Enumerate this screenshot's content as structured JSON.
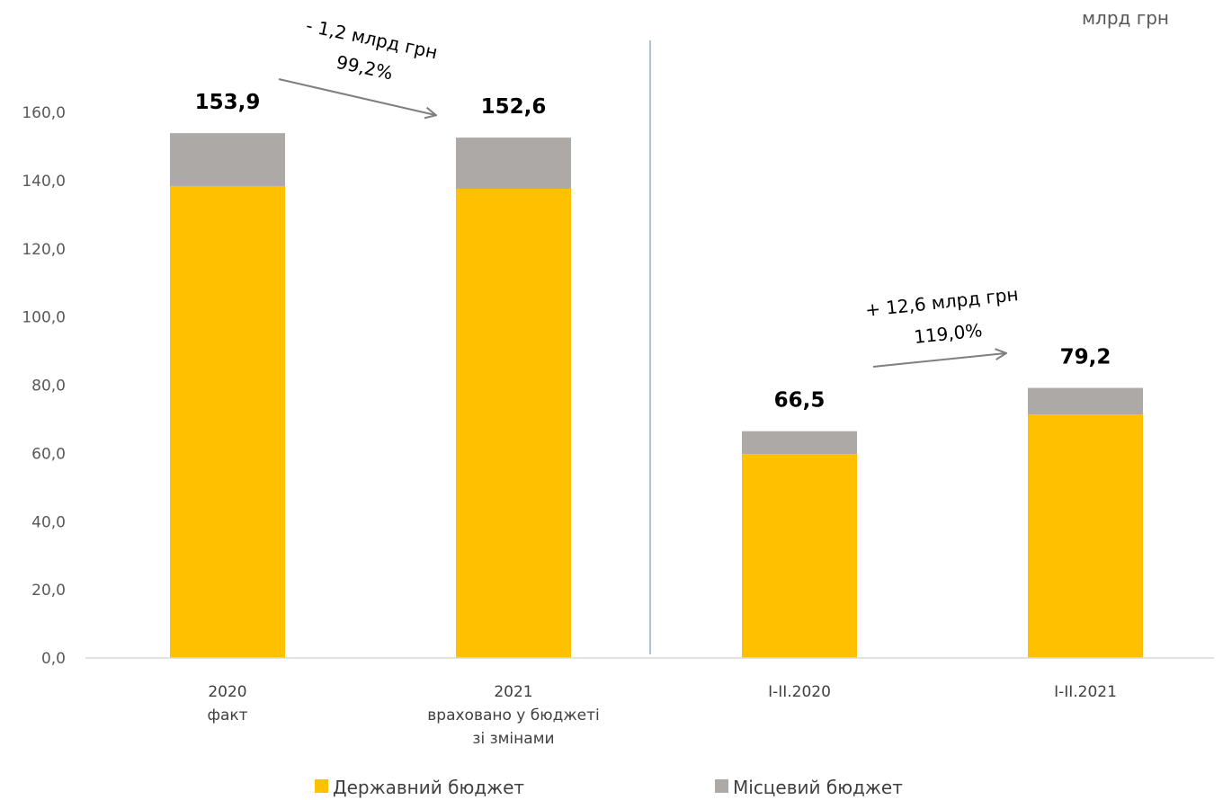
{
  "chart_data": {
    "type": "bar",
    "stacked": true,
    "unit_label": "млрд грн",
    "categories": [
      [
        "2020",
        "факт"
      ],
      [
        "2021",
        "враховано у бюджеті",
        "зі змінами"
      ],
      [
        "I-II.2020"
      ],
      [
        "I-II.2021"
      ]
    ],
    "series": [
      {
        "name": "Державний бюджет",
        "color": "#FFC000",
        "values": [
          138.4,
          137.6,
          59.8,
          71.4
        ]
      },
      {
        "name": "Місцевий бюджет",
        "color": "#ADA9A7",
        "values": [
          15.5,
          15.0,
          6.7,
          7.8
        ]
      }
    ],
    "totals": [
      "153,9",
      "152,6",
      "66,5",
      "79,2"
    ],
    "y_ticks": [
      "0,0",
      "20,0",
      "40,0",
      "60,0",
      "80,0",
      "100,0",
      "120,0",
      "140,0",
      "160,0"
    ],
    "ylim": [
      0,
      160
    ],
    "legend_position": "bottom",
    "annotations": [
      {
        "line1": "- 1,2 млрд грн",
        "line2": "99,2%"
      },
      {
        "line1": "+ 12,6 млрд грн",
        "line2": "119,0%"
      }
    ]
  }
}
